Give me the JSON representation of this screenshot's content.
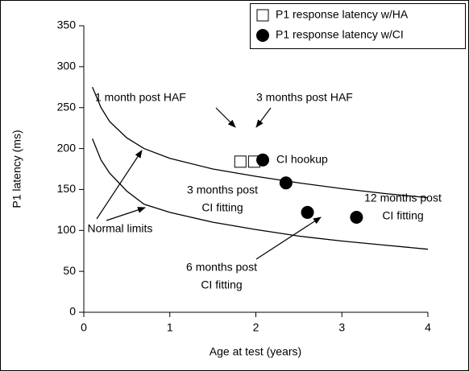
{
  "chart_data": {
    "type": "scatter",
    "xlabel": "Age at test (years)",
    "ylabel": "P1 latency (ms)",
    "xlim": [
      0,
      4
    ],
    "xticks": [
      0,
      1,
      2,
      3,
      4
    ],
    "ylim": [
      0,
      350
    ],
    "yticks": [
      0,
      50,
      100,
      150,
      200,
      250,
      300,
      350
    ],
    "legend": "upper right",
    "series": [
      {
        "name": "P1 response latency w/HA",
        "marker": "square",
        "color": "#000000",
        "x": [
          1.82,
          1.98
        ],
        "values": [
          184,
          184
        ]
      },
      {
        "name": "P1 response latency w/CI",
        "marker": "circle",
        "color": "#000000",
        "x": [
          2.08,
          2.35,
          2.6,
          3.17
        ],
        "values": [
          186,
          158,
          122,
          116
        ]
      }
    ],
    "curves": {
      "color": "#000000",
      "x": [
        0.1,
        0.2,
        0.3,
        0.5,
        0.7,
        1,
        1.5,
        2,
        2.5,
        3,
        3.5,
        4
      ],
      "series": [
        {
          "values": [
            275,
            250,
            233,
            213,
            200,
            188,
            175,
            166,
            158,
            151,
            145,
            140
          ]
        },
        {
          "values": [
            212,
            186,
            170,
            148,
            132,
            122,
            110,
            101,
            93,
            87,
            82,
            77
          ]
        }
      ]
    },
    "annotations": [
      {
        "lines": [
          "1 month post HAF"
        ]
      },
      {
        "lines": [
          "3 months post HAF"
        ]
      },
      {
        "lines": [
          "CI hookup"
        ]
      },
      {
        "lines": [
          "3 months post",
          "CI fitting"
        ]
      },
      {
        "lines": [
          "12 months post",
          "CI fitting"
        ]
      },
      {
        "lines": [
          "Normal limits"
        ]
      },
      {
        "lines": [
          "6 months post",
          "CI fitting"
        ]
      }
    ]
  }
}
